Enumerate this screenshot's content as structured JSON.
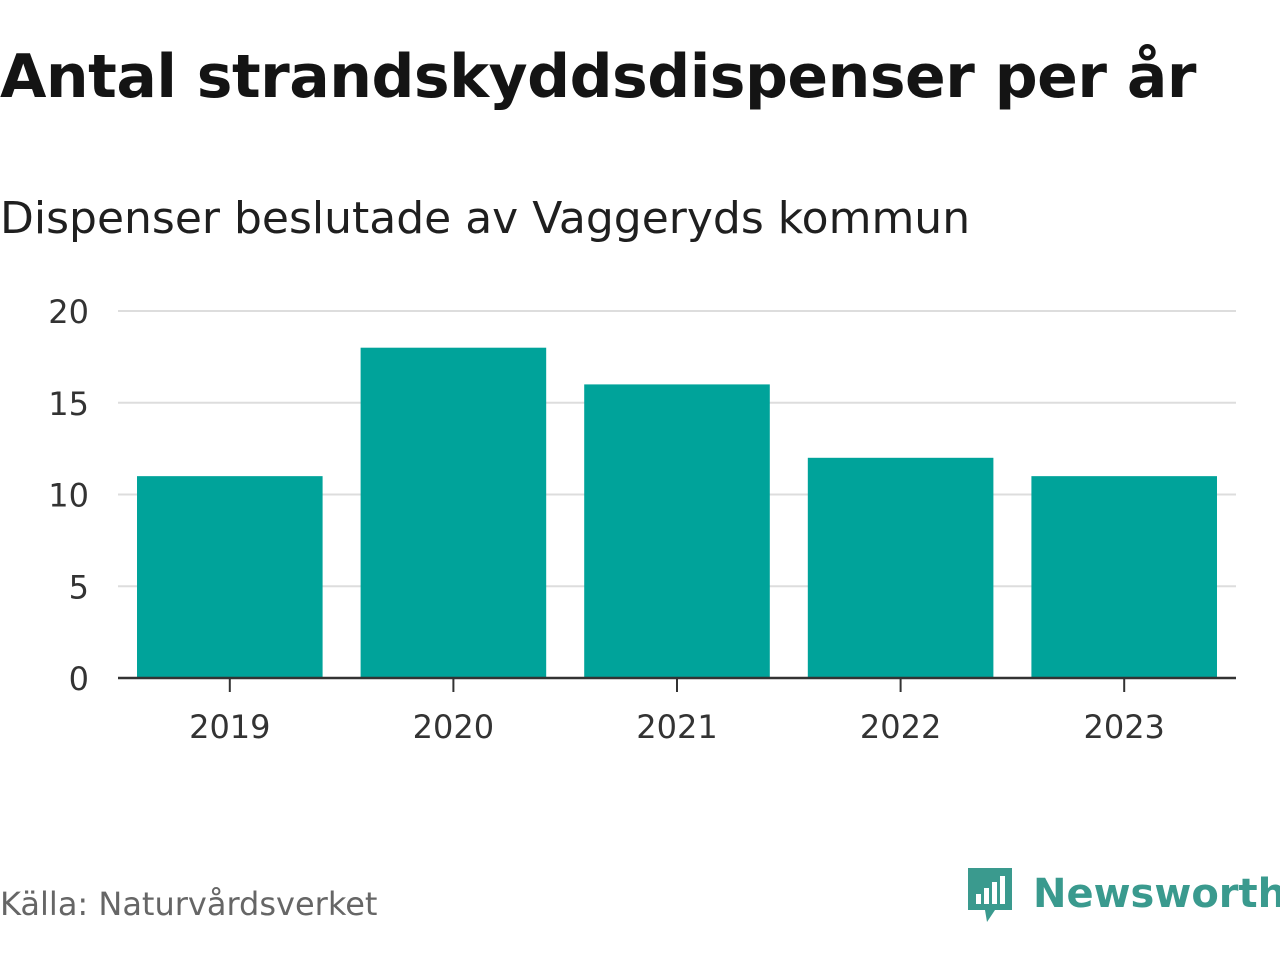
{
  "title": "Antal strandskyddsdispenser per år",
  "subtitle": "Dispenser beslutade av Vaggeryds kommun",
  "source": "Källa: Naturvårdsverket",
  "brand": {
    "name": "Newsworthy",
    "icon": "newsworthy-logo-icon",
    "color": "#3a9a8e"
  },
  "colors": {
    "bar": "#00a39a",
    "grid": "#dddddd",
    "axis": "#333333",
    "text": "#333333"
  },
  "chart_data": {
    "type": "bar",
    "categories": [
      "2019",
      "2020",
      "2021",
      "2022",
      "2023"
    ],
    "values": [
      11,
      18,
      16,
      12,
      11
    ],
    "ylim": [
      0,
      20
    ],
    "yticks": [
      "0",
      "5",
      "10",
      "15",
      "20"
    ],
    "grid": true,
    "legend": "none"
  }
}
